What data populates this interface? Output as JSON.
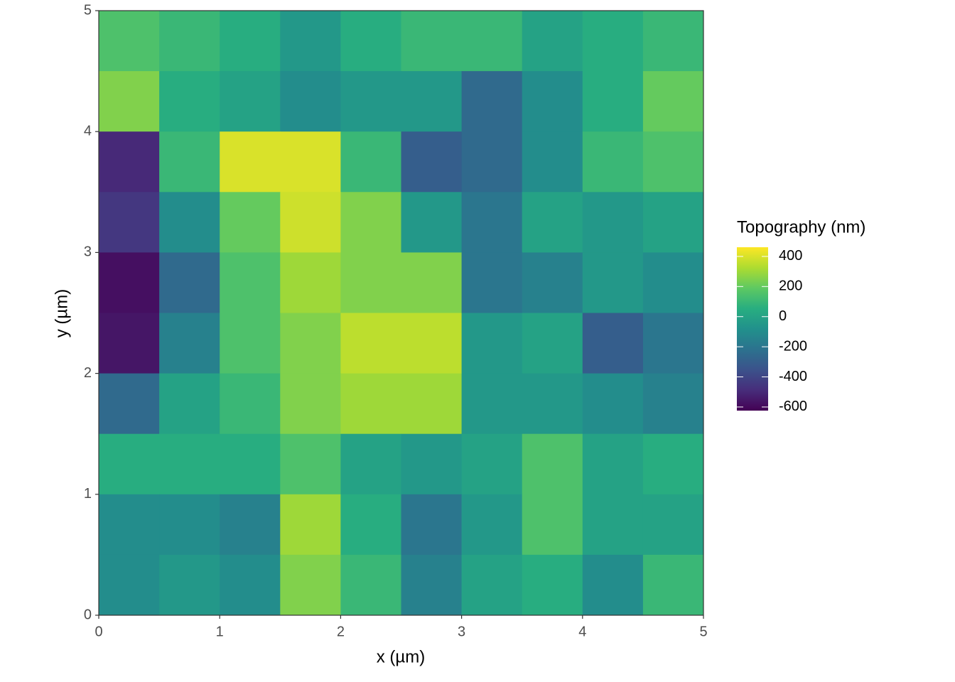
{
  "chart_data": {
    "type": "heatmap",
    "xlabel": "x (µm)",
    "ylabel": "y (µm)",
    "legend_title": "Topography (nm)",
    "xlim": [
      0,
      5
    ],
    "ylim": [
      0,
      5
    ],
    "xticks": [
      0,
      1,
      2,
      3,
      4,
      5
    ],
    "yticks": [
      0,
      1,
      2,
      3,
      4,
      5
    ],
    "x": [
      0.25,
      0.75,
      1.25,
      1.75,
      2.25,
      2.75,
      3.25,
      3.75,
      4.25,
      4.75
    ],
    "y": [
      4.75,
      4.25,
      3.75,
      3.25,
      2.75,
      2.25,
      1.75,
      1.25,
      0.75,
      0.25
    ],
    "cell_size": 0.5,
    "values": [
      [
        150,
        100,
        50,
        -50,
        50,
        100,
        100,
        0,
        50,
        100
      ],
      [
        250,
        50,
        0,
        -100,
        -50,
        -50,
        -250,
        -100,
        50,
        200
      ],
      [
        -500,
        100,
        400,
        400,
        100,
        -300,
        -250,
        -100,
        100,
        150
      ],
      [
        -450,
        -100,
        200,
        380,
        250,
        -50,
        -200,
        0,
        -50,
        0
      ],
      [
        -580,
        -250,
        150,
        300,
        250,
        250,
        -200,
        -150,
        -50,
        -100
      ],
      [
        -560,
        -150,
        150,
        250,
        350,
        350,
        -50,
        0,
        -300,
        -200
      ],
      [
        -250,
        0,
        100,
        250,
        300,
        300,
        -50,
        -50,
        -100,
        -150
      ],
      [
        50,
        50,
        50,
        150,
        0,
        -50,
        0,
        150,
        0,
        50
      ],
      [
        -100,
        -100,
        -150,
        300,
        50,
        -200,
        -50,
        150,
        0,
        0
      ],
      [
        -100,
        -50,
        -100,
        250,
        100,
        -150,
        0,
        50,
        -100,
        100
      ]
    ],
    "zlim": [
      -624,
      461
    ],
    "zticks": [
      400,
      200,
      0,
      -200,
      -400,
      -600
    ],
    "colors": [
      "#440154",
      "#472d7b",
      "#3b528b",
      "#2c728e",
      "#21918c",
      "#28ae80",
      "#5ec962",
      "#addc30",
      "#fde725"
    ]
  }
}
